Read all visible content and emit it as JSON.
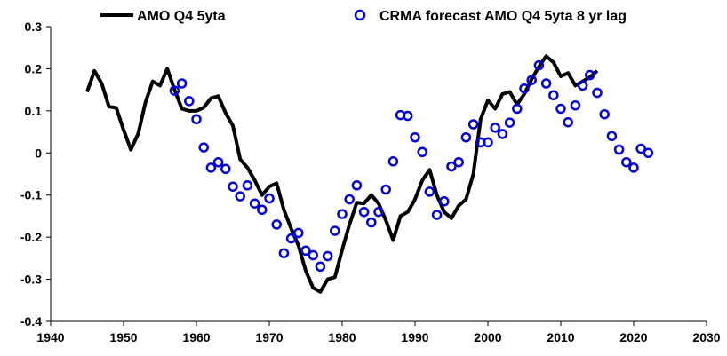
{
  "chart_data": {
    "type": "line",
    "title": "",
    "xlabel": "",
    "ylabel": "",
    "xlim": [
      1940,
      2030
    ],
    "ylim": [
      -0.4,
      0.3
    ],
    "x_ticks": [
      1940,
      1950,
      1960,
      1970,
      1980,
      1990,
      2000,
      2010,
      2020,
      2030
    ],
    "x_tick_labels": [
      "1940",
      "1950",
      "1960",
      "1970",
      "1980",
      "1990",
      "2000",
      "2010",
      "2020",
      "2030"
    ],
    "y_ticks": [
      -0.4,
      -0.3,
      -0.2,
      -0.1,
      0,
      0.1,
      0.2,
      0.3
    ],
    "y_tick_labels": [
      "-0.4",
      "-0.3",
      "-0.2",
      "-0.1",
      "0",
      "0.1",
      "0.2",
      "0.3"
    ],
    "grid": false,
    "legend_position": "top",
    "series": [
      {
        "name": "AMO Q4 5yta",
        "style": "line",
        "color": "#000000",
        "x": [
          1945,
          1946,
          1947,
          1948,
          1949,
          1950,
          1951,
          1952,
          1953,
          1954,
          1955,
          1956,
          1957,
          1958,
          1959,
          1960,
          1961,
          1962,
          1963,
          1964,
          1965,
          1966,
          1967,
          1968,
          1969,
          1970,
          1971,
          1972,
          1973,
          1974,
          1975,
          1976,
          1977,
          1978,
          1979,
          1980,
          1981,
          1982,
          1983,
          1984,
          1985,
          1986,
          1987,
          1988,
          1989,
          1990,
          1991,
          1992,
          1993,
          1994,
          1995,
          1996,
          1997,
          1998,
          1999,
          2000,
          2001,
          2002,
          2003,
          2004,
          2005,
          2006,
          2007,
          2008,
          2009,
          2010,
          2011,
          2012,
          2013,
          2014,
          2015
        ],
        "y": [
          0.145,
          0.195,
          0.165,
          0.11,
          0.107,
          0.055,
          0.008,
          0.045,
          0.12,
          0.17,
          0.16,
          0.2,
          0.15,
          0.105,
          0.1,
          0.1,
          0.108,
          0.13,
          0.135,
          0.095,
          0.065,
          -0.015,
          -0.035,
          -0.065,
          -0.1,
          -0.08,
          -0.072,
          -0.135,
          -0.18,
          -0.22,
          -0.28,
          -0.32,
          -0.33,
          -0.3,
          -0.295,
          -0.23,
          -0.17,
          -0.118,
          -0.12,
          -0.1,
          -0.12,
          -0.16,
          -0.207,
          -0.15,
          -0.14,
          -0.11,
          -0.065,
          -0.04,
          -0.1,
          -0.14,
          -0.155,
          -0.125,
          -0.11,
          -0.05,
          0.08,
          0.125,
          0.105,
          0.14,
          0.145,
          0.115,
          0.14,
          0.175,
          0.205,
          0.23,
          0.215,
          0.182,
          0.19,
          0.16,
          0.17,
          0.18,
          0.195
        ]
      },
      {
        "name": "CRMA forecast AMO Q4 5yta 8 yr lag",
        "style": "marker",
        "color": "#0000e0",
        "x": [
          1957,
          1958,
          1959,
          1960,
          1961,
          1962,
          1963,
          1964,
          1965,
          1966,
          1967,
          1968,
          1969,
          1970,
          1971,
          1972,
          1973,
          1974,
          1975,
          1976,
          1977,
          1978,
          1979,
          1980,
          1981,
          1982,
          1983,
          1984,
          1985,
          1986,
          1987,
          1988,
          1989,
          1990,
          1991,
          1992,
          1993,
          1994,
          1995,
          1996,
          1997,
          1998,
          1999,
          2000,
          2001,
          2002,
          2003,
          2004,
          2005,
          2006,
          2007,
          2008,
          2009,
          2010,
          2011,
          2012,
          2013,
          2014,
          2015,
          2016,
          2017,
          2018,
          2019,
          2020,
          2021,
          2022
        ],
        "y": [
          0.148,
          0.165,
          0.123,
          0.08,
          0.013,
          -0.035,
          -0.022,
          -0.038,
          -0.08,
          -0.103,
          -0.077,
          -0.12,
          -0.135,
          -0.108,
          -0.17,
          -0.238,
          -0.203,
          -0.19,
          -0.232,
          -0.243,
          -0.27,
          -0.245,
          -0.185,
          -0.145,
          -0.11,
          -0.077,
          -0.14,
          -0.165,
          -0.14,
          -0.087,
          -0.02,
          0.09,
          0.088,
          0.037,
          0.002,
          -0.092,
          -0.147,
          -0.115,
          -0.032,
          -0.022,
          0.037,
          0.068,
          0.025,
          0.025,
          0.06,
          0.045,
          0.072,
          0.105,
          0.153,
          0.173,
          0.208,
          0.165,
          0.137,
          0.105,
          0.073,
          0.113,
          0.16,
          0.185,
          0.143,
          0.092,
          0.04,
          0.008,
          -0.022,
          -0.035,
          0.01,
          0.0
        ]
      }
    ]
  }
}
